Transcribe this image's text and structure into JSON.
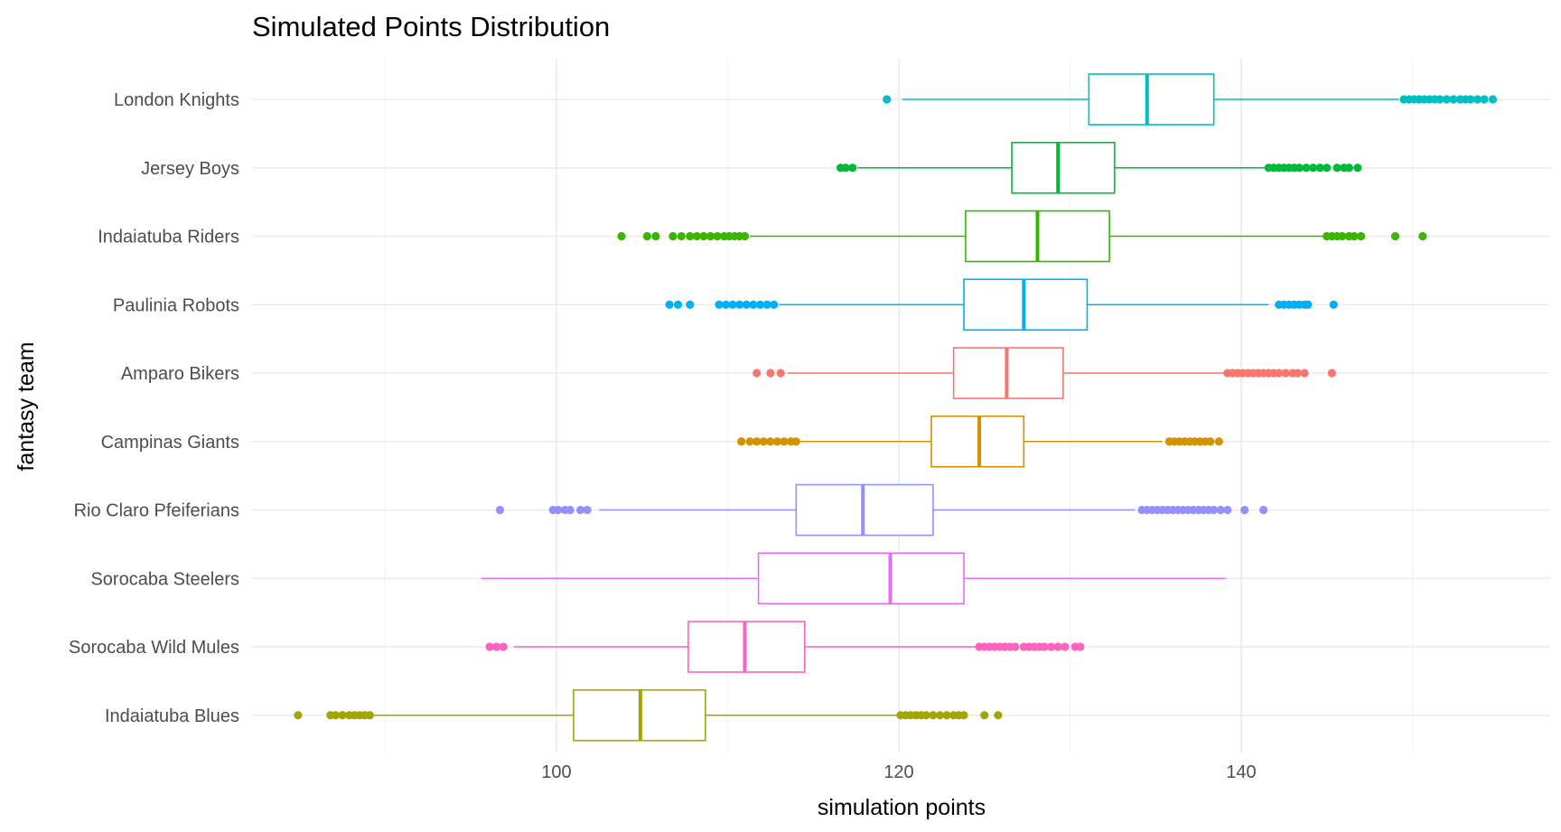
{
  "chart_data": {
    "type": "boxplot",
    "title": "Simulated Points Distribution",
    "xlabel": "simulation points",
    "ylabel": "fantasy team",
    "xlim": [
      82,
      155.5
    ],
    "x_ticks": [
      100,
      120,
      140
    ],
    "x_minor_ticks": [
      90,
      110,
      130,
      150
    ],
    "grid": true,
    "legend": "none",
    "categories": [
      "London Knights",
      "Jersey Boys",
      "Indaiatuba Riders",
      "Paulinia Robots",
      "Amparo Bikers",
      "Campinas Giants",
      "Rio Claro Pfeiferians",
      "Sorocaba Steelers",
      "Sorocaba Wild Mules",
      "Indaiatuba Blues"
    ],
    "series": [
      {
        "team": "London Knights",
        "color": "#00BFC4",
        "whisker_low": 120.2,
        "q1": 131.1,
        "median": 134.5,
        "q3": 138.4,
        "whisker_high": 149.2,
        "outliers": [
          119.3,
          149.5,
          149.8,
          150.1,
          150.4,
          150.7,
          151.0,
          151.3,
          151.6,
          152.0,
          152.4,
          152.8,
          153.1,
          153.4,
          153.8,
          154.2,
          154.7
        ]
      },
      {
        "team": "Jersey Boys",
        "color": "#00BA38",
        "whisker_low": 117.6,
        "q1": 126.6,
        "median": 129.3,
        "q3": 132.6,
        "whisker_high": 141.4,
        "outliers": [
          116.6,
          116.9,
          117.3,
          141.6,
          141.9,
          142.2,
          142.5,
          142.8,
          143.1,
          143.4,
          143.8,
          144.2,
          144.6,
          145.0,
          145.6,
          146.0,
          146.3,
          146.8
        ]
      },
      {
        "team": "Indaiatuba Riders",
        "color": "#39B600",
        "whisker_low": 111.3,
        "q1": 123.9,
        "median": 128.1,
        "q3": 132.3,
        "whisker_high": 144.8,
        "outliers": [
          103.8,
          105.3,
          105.8,
          106.8,
          107.3,
          107.8,
          108.2,
          108.6,
          109.0,
          109.4,
          109.8,
          110.1,
          110.4,
          110.7,
          111.0,
          145.0,
          145.3,
          145.6,
          145.9,
          146.3,
          146.6,
          147.0,
          149.0,
          150.6
        ]
      },
      {
        "team": "Paulinia Robots",
        "color": "#00B0F6",
        "whisker_low": 113.0,
        "q1": 123.8,
        "median": 127.3,
        "q3": 131.0,
        "whisker_high": 141.6,
        "outliers": [
          106.6,
          107.1,
          107.8,
          109.5,
          109.9,
          110.3,
          110.7,
          111.1,
          111.5,
          111.9,
          112.3,
          112.7,
          142.2,
          142.5,
          142.8,
          143.1,
          143.4,
          143.7,
          143.9,
          145.4
        ]
      },
      {
        "team": "Amparo Bikers",
        "color": "#F8766D",
        "whisker_low": 113.5,
        "q1": 123.2,
        "median": 126.3,
        "q3": 129.6,
        "whisker_high": 139.0,
        "outliers": [
          111.7,
          112.5,
          113.1,
          139.2,
          139.5,
          139.8,
          140.1,
          140.4,
          140.7,
          141.0,
          141.3,
          141.6,
          141.9,
          142.2,
          142.6,
          143.0,
          143.3,
          143.7,
          145.3
        ]
      },
      {
        "team": "Campinas Giants",
        "color": "#D39200",
        "whisker_low": 111.2,
        "q1": 121.9,
        "median": 124.7,
        "q3": 127.3,
        "whisker_high": 135.4,
        "outliers": [
          110.8,
          111.3,
          111.7,
          112.1,
          112.5,
          112.9,
          113.3,
          113.7,
          114.0,
          135.8,
          136.1,
          136.4,
          136.7,
          137.0,
          137.3,
          137.6,
          137.9,
          138.2,
          138.7
        ]
      },
      {
        "team": "Rio Claro Pfeiferians",
        "color": "#9590FF",
        "whisker_low": 102.5,
        "q1": 114.0,
        "median": 117.9,
        "q3": 122.0,
        "whisker_high": 133.8,
        "outliers": [
          96.7,
          99.8,
          100.1,
          100.5,
          100.8,
          101.4,
          101.8,
          134.2,
          134.5,
          134.8,
          135.1,
          135.4,
          135.7,
          136.0,
          136.3,
          136.6,
          136.9,
          137.2,
          137.5,
          137.8,
          138.1,
          138.4,
          138.8,
          139.2,
          140.2,
          141.3
        ]
      },
      {
        "team": "Sorocaba Steelers",
        "color": "#E76BF3",
        "whisker_low": 95.6,
        "q1": 111.8,
        "median": 119.5,
        "q3": 123.8,
        "whisker_high": 139.1,
        "outliers": []
      },
      {
        "team": "Sorocaba Wild Mules",
        "color": "#FF62BC",
        "whisker_low": 97.5,
        "q1": 107.7,
        "median": 111.0,
        "q3": 114.5,
        "whisker_high": 124.5,
        "outliers": [
          96.1,
          96.5,
          96.9,
          124.7,
          125.0,
          125.3,
          125.6,
          125.9,
          126.2,
          126.5,
          126.8,
          127.3,
          127.6,
          127.9,
          128.2,
          128.5,
          128.9,
          129.3,
          129.7,
          130.3,
          130.6
        ]
      },
      {
        "team": "Indaiatuba Blues",
        "color": "#A3A500",
        "whisker_low": 89.3,
        "q1": 101.0,
        "median": 104.9,
        "q3": 108.7,
        "whisker_high": 119.9,
        "outliers": [
          84.9,
          86.8,
          87.1,
          87.5,
          87.9,
          88.2,
          88.5,
          88.8,
          89.1,
          120.1,
          120.4,
          120.7,
          121.0,
          121.3,
          121.6,
          122.0,
          122.4,
          122.8,
          123.2,
          123.5,
          123.8,
          125.0,
          125.8
        ]
      }
    ]
  }
}
